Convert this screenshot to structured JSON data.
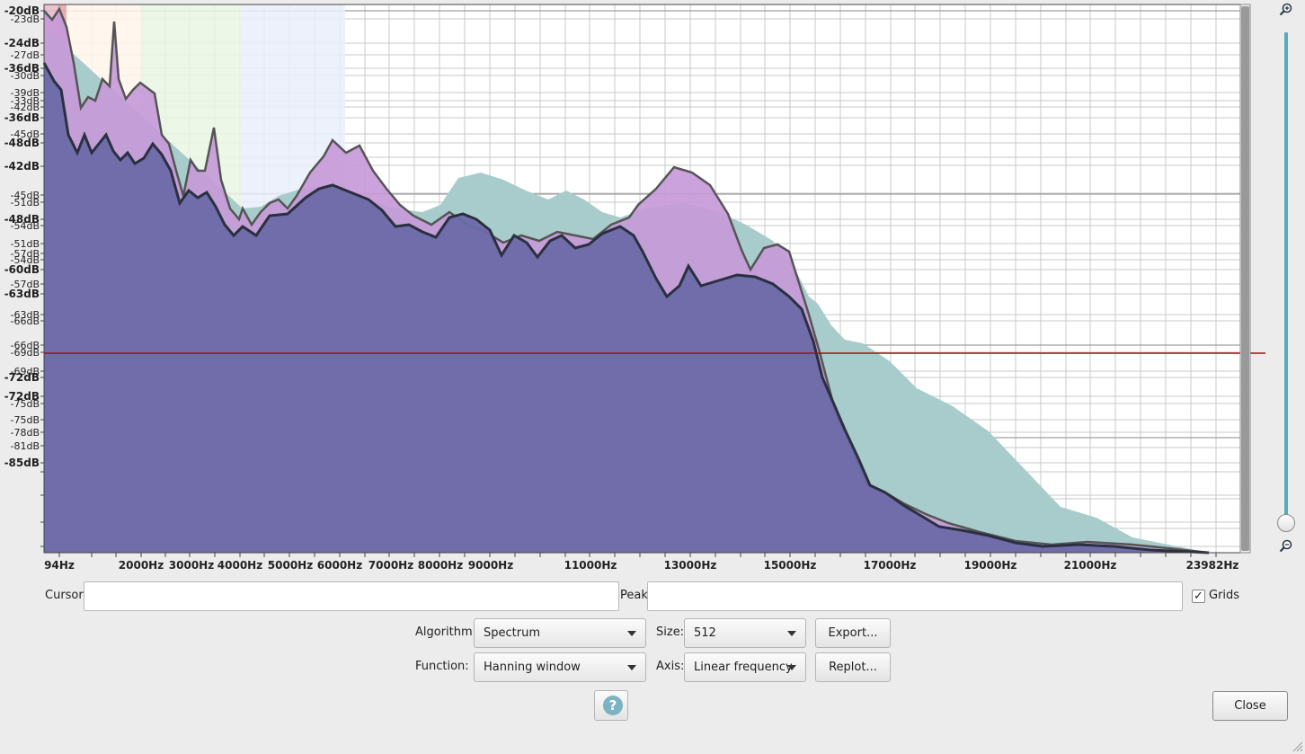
{
  "plot": {
    "db_labels": [
      {
        "text": "-20dB",
        "bold": true
      },
      {
        "text": "-23dB",
        "bold": false
      },
      {
        "text": "-24dB",
        "bold": true
      },
      {
        "text": "-27dB",
        "bold": false
      },
      {
        "text": "-36dB",
        "bold": true
      },
      {
        "text": "-30dB",
        "bold": false
      },
      {
        "text": "-39dB",
        "bold": false
      },
      {
        "text": "-33dB",
        "bold": false
      },
      {
        "text": "-42dB",
        "bold": false
      },
      {
        "text": "-36dB",
        "bold": true
      },
      {
        "text": "-45dB",
        "bold": false
      },
      {
        "text": "-48dB",
        "bold": true
      },
      {
        "text": "-42dB",
        "bold": true
      },
      {
        "text": "-45dB",
        "bold": false
      },
      {
        "text": "-51dB",
        "bold": false
      },
      {
        "text": "-48dB",
        "bold": true
      },
      {
        "text": "-54dB",
        "bold": false
      },
      {
        "text": "-51dB",
        "bold": false
      },
      {
        "text": "-57dB",
        "bold": false
      },
      {
        "text": "-54dB",
        "bold": false
      },
      {
        "text": "-60dB",
        "bold": true
      },
      {
        "text": "-57dB",
        "bold": false
      },
      {
        "text": "-63dB",
        "bold": true
      },
      {
        "text": "-63dB",
        "bold": false
      },
      {
        "text": "-66dB",
        "bold": false
      },
      {
        "text": "-66dB",
        "bold": false
      },
      {
        "text": "-69dB",
        "bold": false
      },
      {
        "text": "-69dB",
        "bold": false
      },
      {
        "text": "-72dB",
        "bold": true
      },
      {
        "text": "-72dB",
        "bold": true
      },
      {
        "text": "-75dB",
        "bold": false
      },
      {
        "text": "-75dB",
        "bold": false
      },
      {
        "text": "-78dB",
        "bold": false
      },
      {
        "text": "-81dB",
        "bold": false
      },
      {
        "text": "-85dB",
        "bold": true
      }
    ],
    "freq_labels": [
      "94Hz",
      "2000Hz",
      "3000Hz",
      "4000Hz",
      "5000Hz",
      "6000Hz",
      "7000Hz",
      "8000Hz",
      "9000Hz",
      "11000Hz",
      "13000Hz",
      "15000Hz",
      "17000Hz",
      "19000Hz",
      "21000Hz",
      "23982Hz"
    ],
    "colors": {
      "background": "#ffffff",
      "grid": "#c8c8c8",
      "grid_major": "#8a8a8a",
      "main_fill": "#6c6aa8",
      "purple_fill": "#c79ad8",
      "teal_fill": "#a8cccc",
      "peak_line": "#a01010"
    }
  },
  "cursor_label": "Cursor:",
  "peak_label": "Peak:",
  "cursor_value": "",
  "peak_value": "",
  "grids_label": "Grids",
  "grids_checked": true,
  "algorithm_label": "Algorithm:",
  "algorithm_value": "Spectrum",
  "size_label": "Size:",
  "size_value": "512",
  "export_label": "Export...",
  "function_label": "Function:",
  "function_value": "Hanning window",
  "axis_label": "Axis:",
  "axis_value": "Linear frequency",
  "replot_label": "Replot...",
  "help_glyph": "?",
  "close_label": "Close",
  "icons": {
    "zoom_in": "zoom-in-icon",
    "zoom_out": "zoom-out-icon",
    "help": "help-icon",
    "check": "checkmark-icon",
    "dropdown": "chevron-down-icon"
  }
}
